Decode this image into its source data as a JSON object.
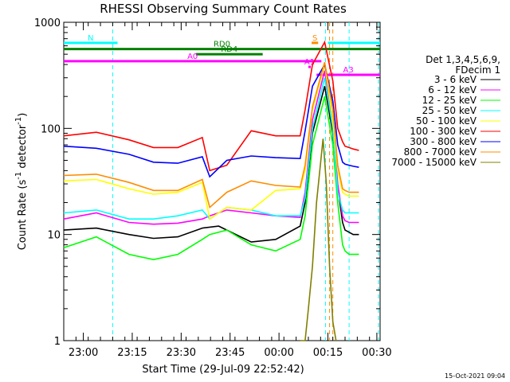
{
  "chart_data": {
    "type": "line",
    "title": "RHESSI Observing Summary Count Rates",
    "xlabel": "Start Time (29-Jul-09 22:52:42)",
    "ylabel": "Count Rate (s",
    "ylabel_sup": "-1",
    "ylabel_tail": " detector",
    "ylabel_sup2": "-1",
    "ylabel_close": ")",
    "yscale": "log",
    "ylim": [
      1,
      1000
    ],
    "xlim_minutes": [
      0,
      1000
    ],
    "x_tick_labels": [
      "23:00",
      "23:15",
      "23:30",
      "23:45",
      "00:00",
      "00:15",
      "00:30"
    ],
    "y_tick_labels": [
      "1",
      "10",
      "100",
      "1000"
    ],
    "legend_header": [
      "Det 1,3,4,5,6,9,",
      "FDecim 1"
    ],
    "legend_loc": "right",
    "footer": "15-Oct-2021 09:04",
    "series": [
      {
        "name": "3 - 6 keV",
        "color": "#000000",
        "t": [
          0,
          40,
          80,
          110,
          140,
          170,
          190,
          200,
          230,
          260,
          290,
          296,
          305,
          320,
          330,
          336,
          342,
          345,
          350,
          355,
          362
        ],
        "v": [
          11,
          11.5,
          10,
          9.2,
          9.5,
          11.5,
          12,
          11,
          8.5,
          9,
          12,
          20,
          90,
          250,
          90,
          28,
          13,
          11,
          10.5,
          10,
          10
        ]
      },
      {
        "name": "6 - 12 keV",
        "color": "#ff00ff",
        "t": [
          0,
          40,
          80,
          110,
          140,
          170,
          179,
          200,
          230,
          260,
          290,
          296,
          305,
          320,
          330,
          336,
          342,
          345,
          350,
          355,
          362
        ],
        "v": [
          14,
          16,
          13,
          12.5,
          12.8,
          14,
          15,
          17,
          16,
          15,
          14.5,
          25,
          120,
          350,
          110,
          30,
          15,
          13.5,
          13,
          13,
          13
        ]
      },
      {
        "name": "12 - 25 keV",
        "color": "#00ff00",
        "t": [
          0,
          40,
          80,
          110,
          140,
          170,
          179,
          200,
          230,
          260,
          290,
          296,
          305,
          320,
          330,
          336,
          342,
          345,
          350,
          355,
          362
        ],
        "v": [
          7.5,
          9.5,
          6.5,
          5.8,
          6.5,
          9,
          10,
          11,
          8,
          7,
          9,
          15,
          70,
          200,
          70,
          20,
          8,
          7,
          6.5,
          6.5,
          6.5
        ]
      },
      {
        "name": "25 - 50 keV",
        "color": "#00ffff",
        "t": [
          0,
          40,
          80,
          110,
          140,
          170,
          179,
          200,
          230,
          260,
          290,
          296,
          305,
          320,
          330,
          336,
          342,
          345,
          350,
          355,
          362
        ],
        "v": [
          16,
          17,
          14,
          14,
          15,
          17,
          14,
          18,
          17,
          15,
          15,
          22,
          100,
          300,
          100,
          25,
          17,
          16,
          16,
          16,
          16
        ]
      },
      {
        "name": "50 - 100 keV",
        "color": "#ffff00",
        "t": [
          0,
          40,
          80,
          110,
          140,
          170,
          179,
          200,
          230,
          260,
          290,
          296,
          305,
          320,
          330,
          336,
          342,
          345,
          350,
          355,
          362
        ],
        "v": [
          32,
          33,
          27,
          24,
          25,
          31,
          14,
          18,
          17,
          26,
          27,
          40,
          150,
          400,
          120,
          40,
          25,
          24,
          23,
          23,
          23
        ]
      },
      {
        "name": "100 - 300 keV",
        "color": "#ff0000",
        "t": [
          0,
          40,
          80,
          110,
          140,
          170,
          179,
          200,
          230,
          260,
          290,
          296,
          305,
          320,
          330,
          336,
          342,
          345,
          350,
          355,
          362
        ],
        "v": [
          85,
          92,
          78,
          66,
          66,
          82,
          40,
          45,
          95,
          85,
          85,
          150,
          400,
          650,
          280,
          100,
          75,
          68,
          66,
          64,
          62
        ]
      },
      {
        "name": "300 - 800 keV",
        "color": "#0000ff",
        "t": [
          0,
          40,
          80,
          110,
          140,
          170,
          179,
          200,
          230,
          260,
          290,
          296,
          305,
          320,
          330,
          336,
          342,
          345,
          350,
          355,
          362
        ],
        "v": [
          68,
          65,
          57,
          48,
          47,
          54,
          35,
          50,
          55,
          53,
          52,
          95,
          250,
          400,
          180,
          70,
          48,
          46,
          45,
          44,
          43
        ]
      },
      {
        "name": "800 - 7000 keV",
        "color": "#ff8c00",
        "t": [
          0,
          40,
          80,
          110,
          140,
          170,
          179,
          200,
          230,
          260,
          290,
          296,
          305,
          320,
          330,
          336,
          342,
          345,
          350,
          355,
          362
        ],
        "v": [
          36,
          37,
          31,
          26,
          26,
          33,
          18,
          25,
          32,
          29,
          28,
          45,
          160,
          420,
          150,
          45,
          27,
          26,
          25,
          25,
          25
        ]
      },
      {
        "name": "7000 - 15000 keV",
        "color": "#808000",
        "t": [
          290,
          296,
          300,
          305,
          310,
          318,
          322,
          326,
          330,
          334
        ],
        "v": [
          1,
          1,
          2,
          5,
          20,
          80,
          30,
          5,
          1.5,
          1
        ]
      }
    ],
    "bars": [
      {
        "label": "N",
        "color": "#00ffff",
        "y": 640,
        "t0": 0,
        "t1": 66
      },
      {
        "label": "S",
        "color": "#ff8c00",
        "y": 640,
        "t0": 304,
        "t1": 312
      },
      {
        "label": "",
        "color": "#00ffff",
        "y": 640,
        "t0": 324,
        "t1": 388
      },
      {
        "label": "RD0",
        "color": "#008000",
        "y": 560,
        "t0": 0,
        "t1": 388
      },
      {
        "label": "RD4",
        "color": "#008000",
        "y": 500,
        "t0": 162,
        "t1": 244
      },
      {
        "label": "A0",
        "color": "#ff00ff",
        "y": 430,
        "t0": 0,
        "t1": 316
      },
      {
        "label": "A1",
        "color": "#ff00ff",
        "y": 380,
        "t0": 300,
        "t1": 303
      },
      {
        "label": "A3",
        "color": "#ff00ff",
        "y": 320,
        "t0": 310,
        "t1": 388
      }
    ],
    "vlines": [
      {
        "t": 60,
        "color": "#00ffff"
      },
      {
        "t": 350,
        "color": "#00ffff"
      },
      {
        "t": 386,
        "color": "#00ffff"
      },
      {
        "t": 326,
        "color": "#ff8c00"
      },
      {
        "t": 330,
        "color": "#ff8c00"
      },
      {
        "t": 321,
        "color": "#00ffff"
      }
    ]
  }
}
